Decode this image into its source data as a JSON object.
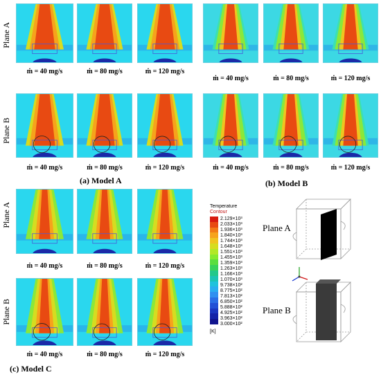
{
  "model_a": {
    "caption": "(a) Model A",
    "plane_a_label": "Plane A",
    "plane_b_label": "Plane B",
    "captions_row1": [
      "ṁ = 40 mg/s",
      "ṁ = 80 mg/s",
      "ṁ = 120 mg/s"
    ],
    "captions_row2": [
      "ṁ = 40 mg/s",
      "ṁ = 80 mg/s",
      "ṁ = 120 mg/s"
    ]
  },
  "model_b": {
    "caption": "(b) Model B",
    "captions_row1": [
      "ṁ = 40 mg/s",
      "ṁ = 80 mg/s",
      "ṁ = 120 mg/s"
    ],
    "captions_row2": [
      "ṁ = 40 mg/s",
      "ṁ = 80 mg/s",
      "ṁ = 120 mg/s"
    ]
  },
  "model_c": {
    "caption": "(c) Model C",
    "plane_a_label": "Plane A",
    "plane_b_label": "Plane B",
    "captions_row1": [
      "ṁ = 40 mg/s",
      "ṁ = 80 mg/s",
      "ṁ = 120 mg/s"
    ],
    "captions_row2": [
      "ṁ = 40 mg/s",
      "ṁ = 80 mg/s",
      "ṁ = 120 mg/s"
    ]
  },
  "legend": {
    "title_line1": "Temperature",
    "title_line2": "Contour",
    "unit": "[K]",
    "ticks": [
      "2.129×10³",
      "2.033×10³",
      "1.936×10³",
      "1.840×10³",
      "1.744×10³",
      "1.648×10³",
      "1.551×10³",
      "1.455×10³",
      "1.359×10³",
      "1.263×10³",
      "1.166×10³",
      "1.070×10³",
      "9.738×10²",
      "8.775×10²",
      "7.813×10²",
      "6.850×10²",
      "5.888×10²",
      "4.925×10²",
      "3.963×10²",
      "3.000×10²"
    ],
    "colors": [
      "#d81a10",
      "#e84a12",
      "#f27a16",
      "#f6a31c",
      "#f0c420",
      "#d6dc20",
      "#b2e828",
      "#86ea30",
      "#5ade3e",
      "#38d25a",
      "#22c88a",
      "#1cc4b4",
      "#20c2dc",
      "#2aaef0",
      "#3090f0",
      "#2a6ee6",
      "#2250d6",
      "#1a36c0",
      "#1422a8",
      "#10148e"
    ]
  },
  "orientation": {
    "plane_a_label": "Plane A",
    "plane_b_label": "Plane B"
  }
}
